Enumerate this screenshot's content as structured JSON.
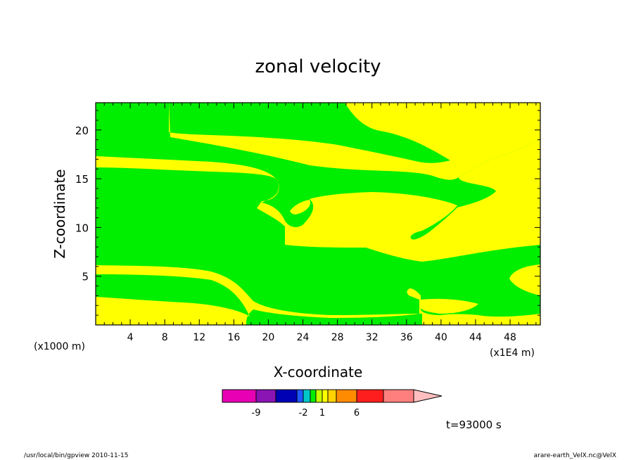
{
  "chart_data": {
    "type": "contour",
    "title": "zonal velocity",
    "xlabel": "X-coordinate",
    "ylabel": "Z-coordinate",
    "x_unit_left": "(x1000 m)",
    "x_unit_right": "(x1E4 m)",
    "xlim": [
      0,
      51.5
    ],
    "ylim": [
      0,
      22.8
    ],
    "x_ticks": [
      "4",
      "8",
      "12",
      "16",
      "20",
      "24",
      "28",
      "32",
      "36",
      "40",
      "44",
      "48"
    ],
    "y_ticks": [
      "5",
      "10",
      "15",
      "20"
    ],
    "fill_colors": {
      "negative_band": "#00ee00",
      "positive_band": "#ffff00"
    },
    "colorbar": {
      "colors": [
        "#e800b4",
        "#8a14b4",
        "#0000b4",
        "#1e5aff",
        "#00c8c8",
        "#00ee00",
        "#c8ff00",
        "#ffff00",
        "#ffd200",
        "#ff8c00",
        "#ff1e1e",
        "#ff7f7f",
        "#ffbfbf"
      ],
      "labels": [
        "-9",
        "-2",
        "1",
        "6"
      ]
    },
    "time_label": "t=93000 s"
  },
  "footer": {
    "left": "/usr/local/bin/gpview   2010-11-15",
    "right": "arare-earth_VelX.nc@VelX"
  }
}
